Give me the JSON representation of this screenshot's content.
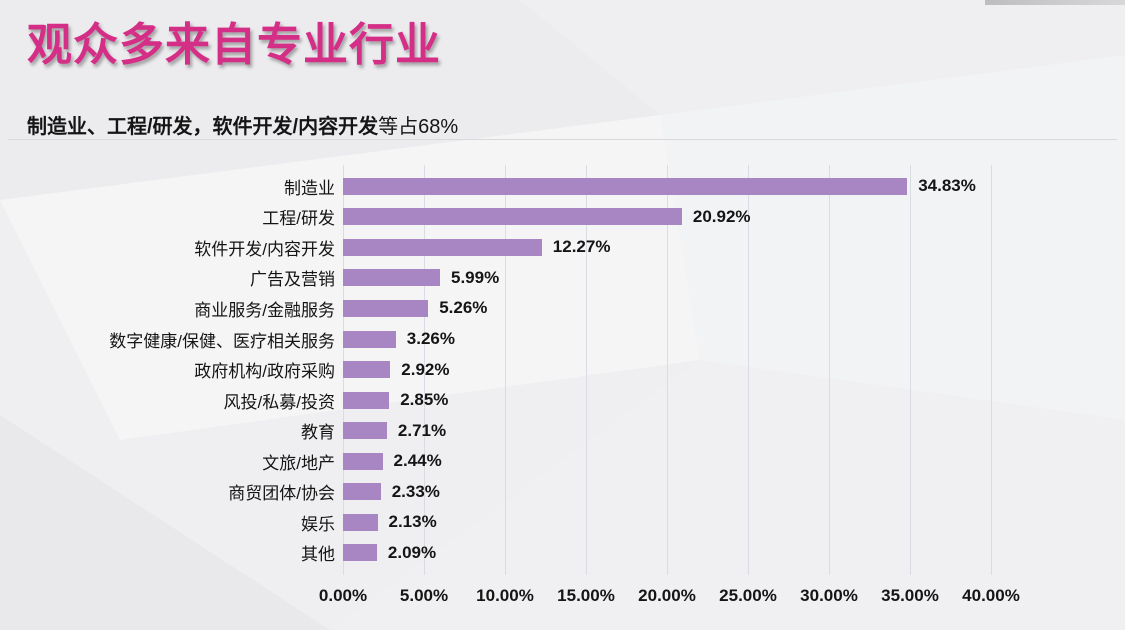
{
  "header": {
    "title": "观众多来自专业行业",
    "subtitle_bold": "制造业、工程/研发，软件开发/内容开发",
    "subtitle_suffix": "等占68%"
  },
  "colors": {
    "title": "#d52e86",
    "bar": "#a886c4",
    "gridline": "#d9dce3",
    "background": "#efeff1",
    "text": "#151515"
  },
  "chart_data": {
    "type": "bar",
    "orientation": "horizontal",
    "title": "观众多来自专业行业",
    "categories": [
      "制造业",
      "工程/研发",
      "软件开发/内容开发",
      "广告及营销",
      "商业服务/金融服务",
      "数字健康/保健、医疗相关服务",
      "政府机构/政府采购",
      "风投/私募/投资",
      "教育",
      "文旅/地产",
      "商贸团体/协会",
      "娱乐",
      "其他"
    ],
    "values": [
      34.83,
      20.92,
      12.27,
      5.99,
      5.26,
      3.26,
      2.92,
      2.85,
      2.71,
      2.44,
      2.33,
      2.13,
      2.09
    ],
    "value_labels": [
      "34.83%",
      "20.92%",
      "12.27%",
      "5.99%",
      "5.26%",
      "3.26%",
      "2.92%",
      "2.85%",
      "2.71%",
      "2.44%",
      "2.33%",
      "2.13%",
      "2.09%"
    ],
    "x_ticks": [
      "0.00%",
      "5.00%",
      "10.00%",
      "15.00%",
      "20.00%",
      "25.00%",
      "30.00%",
      "35.00%",
      "40.00%"
    ],
    "xlim": [
      0,
      40
    ],
    "xlabel": "",
    "ylabel": "",
    "grid": true,
    "legend": false
  }
}
